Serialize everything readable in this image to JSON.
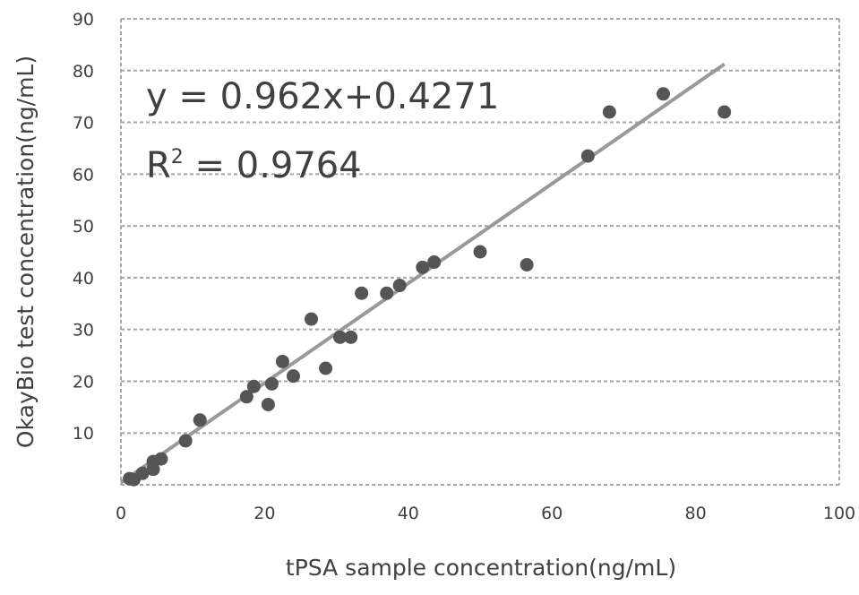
{
  "chart_data": {
    "type": "scatter",
    "title": "",
    "xlabel": "tPSA sample concentration(ng/mL)",
    "ylabel": "OkayBio test concentration(ng/mL)",
    "xlim": [
      0,
      100
    ],
    "ylim": [
      0,
      90
    ],
    "x_ticks": [
      0,
      20,
      40,
      60,
      80,
      100
    ],
    "y_ticks": [
      10,
      20,
      30,
      40,
      50,
      60,
      70,
      80,
      90
    ],
    "grid": true,
    "legend": "none",
    "annotations": {
      "equation": "y = 0.962x+0.4271",
      "r2_label": "R",
      "r2_sup": "2",
      "r2_value": " = 0.9764"
    },
    "trendline": {
      "slope": 0.962,
      "intercept": 0.4271,
      "x_start": 0,
      "x_end": 84
    },
    "colors": {
      "points": "#555555",
      "trendline": "#999999",
      "grid": "#a6a6a6",
      "text": "#404040"
    },
    "points": [
      {
        "x": 1.2,
        "y": 1.2
      },
      {
        "x": 1.8,
        "y": 1.0
      },
      {
        "x": 3.0,
        "y": 2.2
      },
      {
        "x": 4.5,
        "y": 3.0
      },
      {
        "x": 4.5,
        "y": 4.5
      },
      {
        "x": 5.6,
        "y": 5.0
      },
      {
        "x": 9.0,
        "y": 8.5
      },
      {
        "x": 11.0,
        "y": 12.5
      },
      {
        "x": 17.5,
        "y": 17.0
      },
      {
        "x": 18.5,
        "y": 19.0
      },
      {
        "x": 21.0,
        "y": 19.5
      },
      {
        "x": 20.5,
        "y": 15.5
      },
      {
        "x": 22.5,
        "y": 23.8
      },
      {
        "x": 24.0,
        "y": 21.0
      },
      {
        "x": 26.5,
        "y": 32.0
      },
      {
        "x": 28.5,
        "y": 22.5
      },
      {
        "x": 30.5,
        "y": 28.5
      },
      {
        "x": 32.0,
        "y": 28.5
      },
      {
        "x": 33.5,
        "y": 37.0
      },
      {
        "x": 37.0,
        "y": 37.0
      },
      {
        "x": 38.8,
        "y": 38.5
      },
      {
        "x": 42.0,
        "y": 42.0
      },
      {
        "x": 43.6,
        "y": 43.0
      },
      {
        "x": 50.0,
        "y": 45.0
      },
      {
        "x": 56.5,
        "y": 42.5
      },
      {
        "x": 65.0,
        "y": 63.5
      },
      {
        "x": 68.0,
        "y": 72.0
      },
      {
        "x": 75.5,
        "y": 75.5
      },
      {
        "x": 84.0,
        "y": 72.0
      }
    ]
  }
}
